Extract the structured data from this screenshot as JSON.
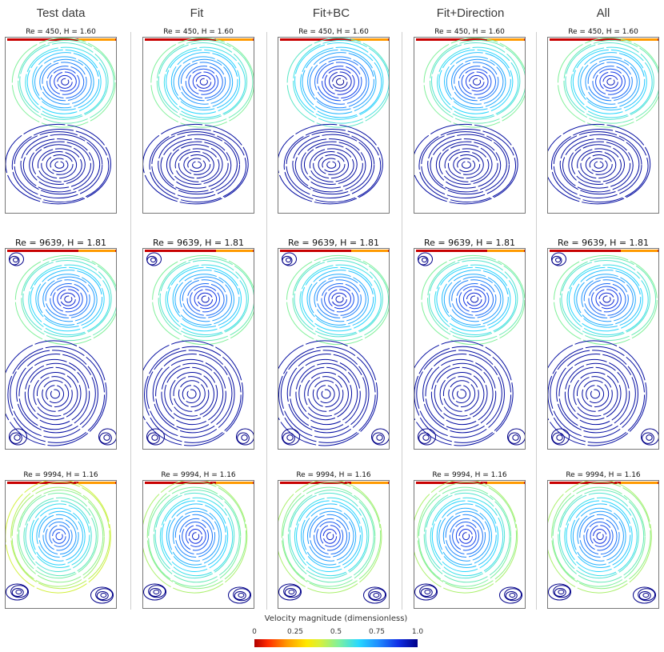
{
  "columns": [
    "Test data",
    "Fit",
    "Fit+BC",
    "Fit+Direction",
    "All"
  ],
  "rows": [
    {
      "label": "Re = 450, H = 1.60",
      "Re": 450,
      "H": 1.6
    },
    {
      "label": "Re = 9639, H = 1.81",
      "Re": 9639,
      "H": 1.81
    },
    {
      "label": "Re = 9994, H = 1.16",
      "Re": 9994,
      "H": 1.16
    }
  ],
  "colorbar": {
    "title": "Velocity magnitude (dimensionless)",
    "ticks": [
      "0",
      "0.25",
      "0.5",
      "0.75",
      "1.0"
    ],
    "colors": [
      "#b00000",
      "#ff2a00",
      "#ff9a00",
      "#ffe800",
      "#d8f03a",
      "#7df0a0",
      "#27d8ff",
      "#1f8cff",
      "#1030e6",
      "#000088"
    ]
  },
  "chart_data": {
    "type": "streamline-grid",
    "columns": [
      "Test data",
      "Fit",
      "Fit+BC",
      "Fit+Direction",
      "All"
    ],
    "panels": [
      {
        "Re": 450,
        "H": 1.6
      },
      {
        "Re": 9639,
        "H": 1.81
      },
      {
        "Re": 9994,
        "H": 1.16
      }
    ],
    "colorbar_range": [
      0,
      1.0
    ],
    "colorbar_label": "Velocity magnitude (dimensionless)"
  }
}
